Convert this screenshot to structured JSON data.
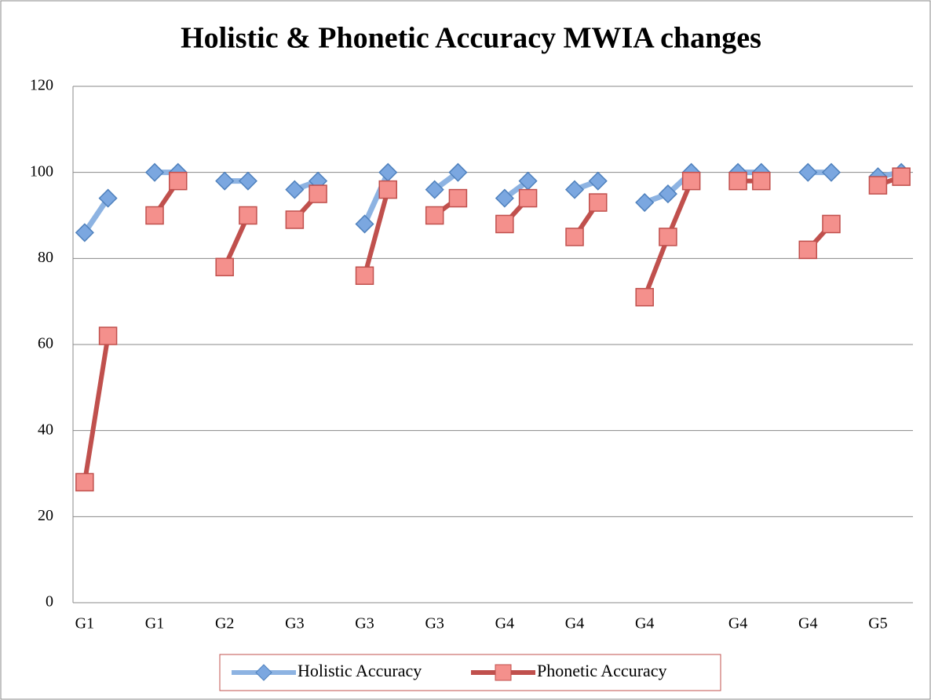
{
  "chart_data": {
    "type": "line",
    "title": "Holistic & Phonetic Accuracy MWIA changes",
    "categories": [
      "G1",
      null,
      null,
      "G1",
      null,
      null,
      "G2",
      null,
      null,
      "G3",
      null,
      null,
      "G3",
      null,
      null,
      "G3",
      null,
      null,
      "G4",
      null,
      null,
      "G4",
      null,
      null,
      "G4",
      null,
      null,
      null,
      "G4",
      null,
      null,
      "G4",
      null,
      null,
      "G5",
      null
    ],
    "series": [
      {
        "name": "Holistic Accuracy",
        "color": "#8db3e2",
        "marker_color": "#4f81bd",
        "marker_fill": "#7ba7e0",
        "marker": "diamond",
        "values": [
          86,
          94,
          null,
          100,
          100,
          null,
          98,
          98,
          null,
          96,
          98,
          null,
          88,
          100,
          null,
          96,
          100,
          null,
          94,
          98,
          null,
          96,
          98,
          null,
          93,
          95,
          100,
          null,
          100,
          100,
          null,
          100,
          100,
          null,
          99,
          100
        ]
      },
      {
        "name": "Phonetic Accuracy",
        "color": "#c0504d",
        "marker_color": "#c0504d",
        "marker_fill": "#f4908c",
        "marker": "square",
        "values": [
          28,
          62,
          null,
          90,
          98,
          null,
          78,
          90,
          null,
          89,
          95,
          null,
          76,
          96,
          null,
          90,
          94,
          null,
          88,
          94,
          null,
          85,
          93,
          null,
          71,
          85,
          98,
          null,
          98,
          98,
          null,
          82,
          88,
          null,
          97,
          99
        ]
      }
    ],
    "ylim": [
      0,
      120
    ],
    "yticks": [
      0,
      20,
      40,
      60,
      80,
      100,
      120
    ],
    "grid": true,
    "legend": "bottom"
  }
}
